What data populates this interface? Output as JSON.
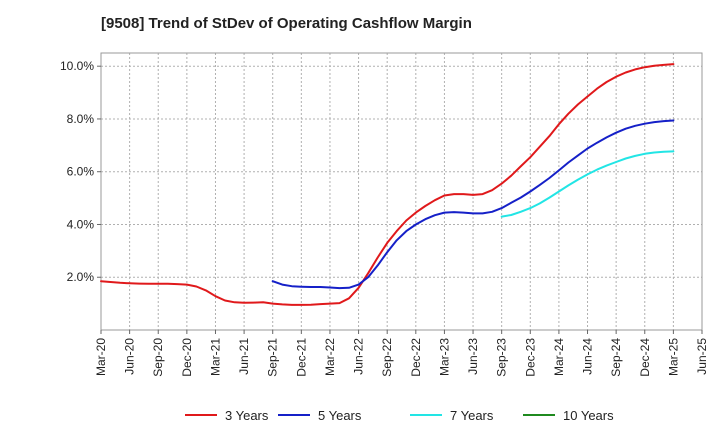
{
  "chart_data": {
    "type": "line",
    "title": "[9508]  Trend of StDev of Operating Cashflow Margin",
    "xlabel": "",
    "ylabel": "",
    "ylim": [
      0,
      10.5
    ],
    "y_ticks": [
      2,
      4,
      6,
      8,
      10
    ],
    "y_tick_labels": [
      "2.0%",
      "4.0%",
      "6.0%",
      "8.0%",
      "10.0%"
    ],
    "x_tick_labels": [
      "Mar-20",
      "Jun-20",
      "Sep-20",
      "Dec-20",
      "Mar-21",
      "Jun-21",
      "Sep-21",
      "Dec-21",
      "Mar-22",
      "Jun-22",
      "Sep-22",
      "Dec-22",
      "Mar-23",
      "Jun-23",
      "Sep-23",
      "Dec-23",
      "Mar-24",
      "Jun-24",
      "Sep-24",
      "Dec-24",
      "Mar-25",
      "Jun-25"
    ],
    "grid": true,
    "legend_position": "bottom",
    "series": [
      {
        "name": "3 Years",
        "color": "#e0191b",
        "x": [
          "Mar-20",
          "Apr-20",
          "May-20",
          "Jun-20",
          "Jul-20",
          "Aug-20",
          "Sep-20",
          "Oct-20",
          "Nov-20",
          "Dec-20",
          "Jan-21",
          "Feb-21",
          "Mar-21",
          "Apr-21",
          "May-21",
          "Jun-21",
          "Jul-21",
          "Aug-21",
          "Sep-21",
          "Oct-21",
          "Nov-21",
          "Dec-21",
          "Jan-22",
          "Feb-22",
          "Mar-22",
          "Apr-22",
          "May-22",
          "Jun-22",
          "Jul-22",
          "Aug-22",
          "Sep-22",
          "Oct-22",
          "Nov-22",
          "Dec-22",
          "Jan-23",
          "Feb-23",
          "Mar-23",
          "Apr-23",
          "May-23",
          "Jun-23",
          "Jul-23",
          "Aug-23",
          "Sep-23",
          "Oct-23",
          "Nov-23",
          "Dec-23",
          "Jan-24",
          "Feb-24",
          "Mar-24",
          "Apr-24",
          "May-24",
          "Jun-24",
          "Jul-24",
          "Aug-24",
          "Sep-24",
          "Oct-24",
          "Nov-24",
          "Dec-24",
          "Jan-25",
          "Feb-25",
          "Mar-25"
        ],
        "values": [
          1.85,
          1.82,
          1.79,
          1.77,
          1.76,
          1.75,
          1.75,
          1.75,
          1.74,
          1.72,
          1.65,
          1.5,
          1.28,
          1.12,
          1.05,
          1.03,
          1.04,
          1.05,
          1.0,
          0.97,
          0.95,
          0.95,
          0.96,
          0.98,
          1.0,
          1.02,
          1.2,
          1.6,
          2.15,
          2.75,
          3.3,
          3.75,
          4.15,
          4.45,
          4.7,
          4.92,
          5.1,
          5.15,
          5.15,
          5.12,
          5.15,
          5.3,
          5.55,
          5.85,
          6.2,
          6.55,
          6.95,
          7.35,
          7.8,
          8.2,
          8.55,
          8.85,
          9.15,
          9.4,
          9.6,
          9.76,
          9.88,
          9.96,
          10.02,
          10.05,
          10.08
        ]
      },
      {
        "name": "5 Years",
        "color": "#1520c8",
        "x": [
          "Sep-21",
          "Oct-21",
          "Nov-21",
          "Dec-21",
          "Jan-22",
          "Feb-22",
          "Mar-22",
          "Apr-22",
          "May-22",
          "Jun-22",
          "Jul-22",
          "Aug-22",
          "Sep-22",
          "Oct-22",
          "Nov-22",
          "Dec-22",
          "Jan-23",
          "Feb-23",
          "Mar-23",
          "Apr-23",
          "May-23",
          "Jun-23",
          "Jul-23",
          "Aug-23",
          "Sep-23",
          "Oct-23",
          "Nov-23",
          "Dec-23",
          "Jan-24",
          "Feb-24",
          "Mar-24",
          "Apr-24",
          "May-24",
          "Jun-24",
          "Jul-24",
          "Aug-24",
          "Sep-24",
          "Oct-24",
          "Nov-24",
          "Dec-24",
          "Jan-25",
          "Feb-25",
          "Mar-25"
        ],
        "values": [
          1.85,
          1.72,
          1.66,
          1.64,
          1.63,
          1.63,
          1.61,
          1.59,
          1.6,
          1.72,
          2.0,
          2.45,
          2.95,
          3.4,
          3.75,
          4.0,
          4.2,
          4.35,
          4.45,
          4.47,
          4.45,
          4.42,
          4.42,
          4.48,
          4.62,
          4.82,
          5.02,
          5.25,
          5.5,
          5.76,
          6.05,
          6.35,
          6.62,
          6.88,
          7.1,
          7.3,
          7.48,
          7.63,
          7.74,
          7.82,
          7.88,
          7.92,
          7.94
        ]
      },
      {
        "name": "7 Years",
        "color": "#22e5e5",
        "x": [
          "Sep-23",
          "Oct-23",
          "Nov-23",
          "Dec-23",
          "Jan-24",
          "Feb-24",
          "Mar-24",
          "Apr-24",
          "May-24",
          "Jun-24",
          "Jul-24",
          "Aug-24",
          "Sep-24",
          "Oct-24",
          "Nov-24",
          "Dec-24",
          "Jan-25",
          "Feb-25",
          "Mar-25"
        ],
        "values": [
          4.3,
          4.36,
          4.48,
          4.62,
          4.8,
          5.02,
          5.25,
          5.48,
          5.7,
          5.9,
          6.08,
          6.23,
          6.37,
          6.5,
          6.6,
          6.68,
          6.73,
          6.76,
          6.77
        ]
      },
      {
        "name": "10 Years",
        "color": "#1f8a1f",
        "x": [],
        "values": []
      }
    ]
  }
}
